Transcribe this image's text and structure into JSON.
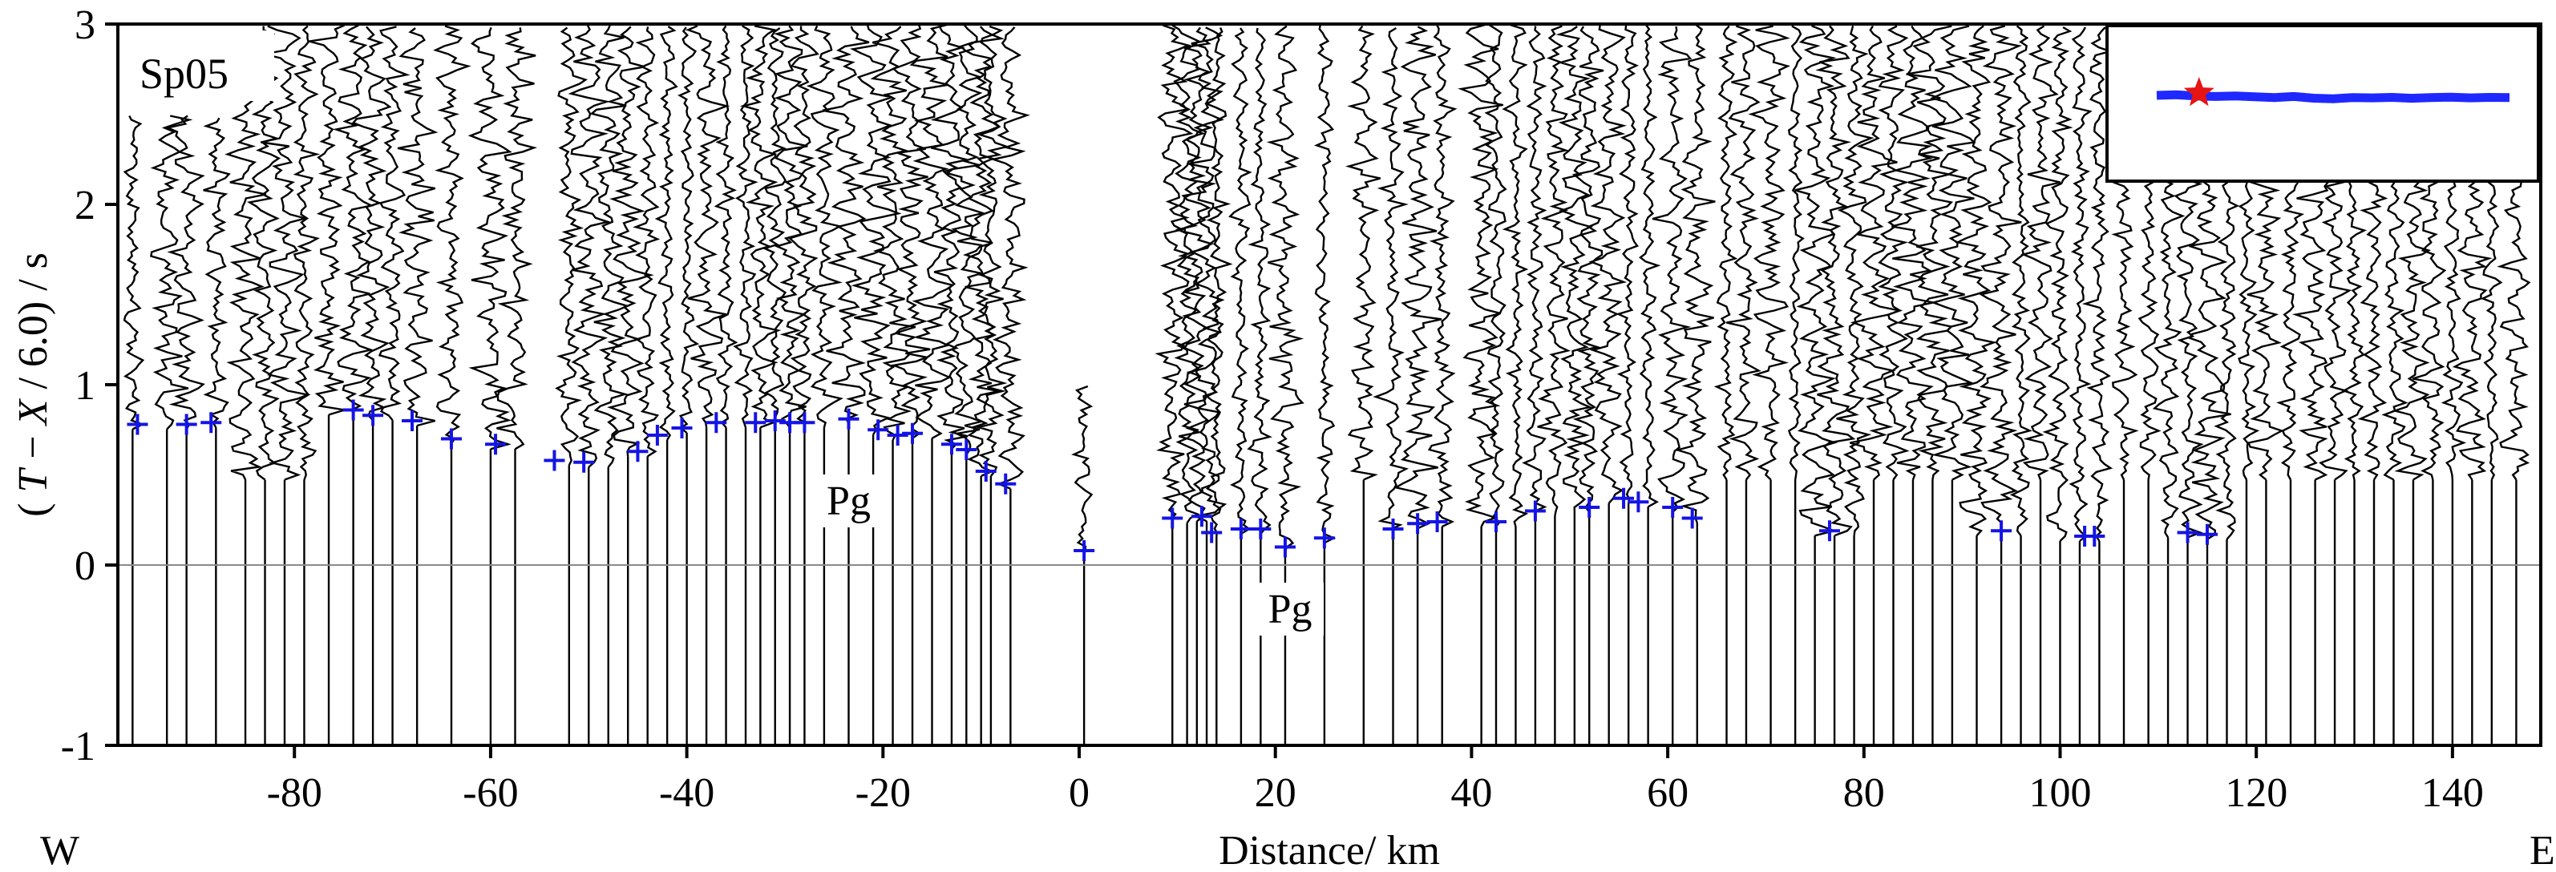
{
  "chart_data": {
    "type": "seismic-record-section",
    "panel_label": "Sp05",
    "xlabel": "Distance/ km",
    "ylabel_parts": [
      "( ",
      "T",
      " − ",
      "X",
      " / 6.0) / s"
    ],
    "xlim": [
      -98,
      149
    ],
    "ylim": [
      -1,
      3
    ],
    "x_ticks": [
      -80,
      -60,
      -40,
      -20,
      0,
      20,
      40,
      60,
      80,
      100,
      120,
      140
    ],
    "y_ticks": [
      -1,
      0,
      1,
      2,
      3
    ],
    "direction_labels": {
      "left": "W",
      "right": "E"
    },
    "annotations": [
      {
        "text": "Pg",
        "x": -23.5,
        "y": 0.28
      },
      {
        "text": "Pg",
        "x": 21.5,
        "y": -0.32
      }
    ],
    "reference_line_y": 0,
    "trace_color": "#000000",
    "pick_color": "#1414e6",
    "traces": [
      {
        "x": -96.5,
        "start": 2.5
      },
      {
        "x": -93,
        "start": 2.5
      },
      {
        "x": -91,
        "start": 2.5
      },
      {
        "x": -88,
        "start": 2.5
      },
      {
        "x": -85,
        "start": 2.9
      },
      {
        "x": -83,
        "start": 3.0
      },
      {
        "x": -81,
        "start": 3.0
      },
      {
        "x": -79,
        "start": 3.0
      },
      {
        "x": -76.5,
        "start": 3.0
      },
      {
        "x": -74,
        "start": 3.0
      },
      {
        "x": -72,
        "start": 3.0
      },
      {
        "x": -70,
        "start": 3.0
      },
      {
        "x": -67.5,
        "start": 3.0
      },
      {
        "x": -64,
        "start": 3.0
      },
      {
        "x": -60,
        "start": 3.0
      },
      {
        "x": -57.5,
        "start": 3.0
      },
      {
        "x": -52,
        "start": 3.0
      },
      {
        "x": -50,
        "start": 3.0
      },
      {
        "x": -48,
        "start": 3.0
      },
      {
        "x": -46,
        "start": 3.0
      },
      {
        "x": -44,
        "start": 3.0
      },
      {
        "x": -42,
        "start": 3.0
      },
      {
        "x": -40,
        "start": 3.0
      },
      {
        "x": -38,
        "start": 3.0
      },
      {
        "x": -36,
        "start": 3.0
      },
      {
        "x": -34,
        "start": 3.0
      },
      {
        "x": -32.5,
        "start": 3.0
      },
      {
        "x": -31,
        "start": 3.0
      },
      {
        "x": -29.5,
        "start": 3.0
      },
      {
        "x": -28,
        "start": 3.0
      },
      {
        "x": -26,
        "start": 3.0
      },
      {
        "x": -23.5,
        "start": 3.0
      },
      {
        "x": -21,
        "start": 3.0
      },
      {
        "x": -19,
        "start": 3.0
      },
      {
        "x": -17,
        "start": 3.0
      },
      {
        "x": -15,
        "start": 3.0
      },
      {
        "x": -13,
        "start": 3.0
      },
      {
        "x": -11.5,
        "start": 3.0
      },
      {
        "x": -10,
        "start": 3.0
      },
      {
        "x": -9,
        "start": 3.0
      },
      {
        "x": -7,
        "start": 3.0
      },
      {
        "x": 0.5,
        "start": 1.0
      },
      {
        "x": 9.5,
        "start": 3.0
      },
      {
        "x": 11,
        "start": 3.0
      },
      {
        "x": 12,
        "start": 3.0
      },
      {
        "x": 13,
        "start": 3.0
      },
      {
        "x": 14,
        "start": 3.0
      },
      {
        "x": 16.5,
        "start": 3.0
      },
      {
        "x": 18.5,
        "start": 3.0
      },
      {
        "x": 21,
        "start": 3.0
      },
      {
        "x": 25,
        "start": 3.0
      },
      {
        "x": 29,
        "start": 3.0
      },
      {
        "x": 32,
        "start": 3.0
      },
      {
        "x": 34.5,
        "start": 3.0
      },
      {
        "x": 37,
        "start": 3.0
      },
      {
        "x": 41,
        "start": 3.0
      },
      {
        "x": 42.5,
        "start": 3.0
      },
      {
        "x": 44.5,
        "start": 3.0
      },
      {
        "x": 46.5,
        "start": 3.0
      },
      {
        "x": 48.5,
        "start": 3.0
      },
      {
        "x": 50.5,
        "start": 3.0
      },
      {
        "x": 52,
        "start": 3.0
      },
      {
        "x": 54,
        "start": 3.0
      },
      {
        "x": 56,
        "start": 3.0
      },
      {
        "x": 58,
        "start": 3.0
      },
      {
        "x": 60.5,
        "start": 3.0
      },
      {
        "x": 63,
        "start": 3.0
      },
      {
        "x": 66,
        "start": 3.0
      },
      {
        "x": 68,
        "start": 3.0
      },
      {
        "x": 70.5,
        "start": 3.0
      },
      {
        "x": 73,
        "start": 3.0
      },
      {
        "x": 75,
        "start": 3.0
      },
      {
        "x": 77,
        "start": 3.0
      },
      {
        "x": 79,
        "start": 3.0
      },
      {
        "x": 81,
        "start": 3.0
      },
      {
        "x": 83,
        "start": 3.0
      },
      {
        "x": 85,
        "start": 3.0
      },
      {
        "x": 87,
        "start": 3.0
      },
      {
        "x": 89,
        "start": 3.0
      },
      {
        "x": 91.5,
        "start": 3.0
      },
      {
        "x": 94,
        "start": 3.0
      },
      {
        "x": 96,
        "start": 3.0
      },
      {
        "x": 98,
        "start": 3.0
      },
      {
        "x": 100,
        "start": 3.0
      },
      {
        "x": 102,
        "start": 3.0
      },
      {
        "x": 104,
        "start": 3.0
      },
      {
        "x": 106.5,
        "start": 3.0
      },
      {
        "x": 109,
        "start": 3.0
      },
      {
        "x": 111,
        "start": 3.0
      },
      {
        "x": 113,
        "start": 2.2
      },
      {
        "x": 115,
        "start": 2.2
      },
      {
        "x": 117,
        "start": 2.2
      },
      {
        "x": 119,
        "start": 2.2
      },
      {
        "x": 121,
        "start": 2.2
      },
      {
        "x": 123.5,
        "start": 2.2
      },
      {
        "x": 126,
        "start": 2.2
      },
      {
        "x": 128,
        "start": 2.2
      },
      {
        "x": 130,
        "start": 2.2
      },
      {
        "x": 132,
        "start": 2.2
      },
      {
        "x": 134,
        "start": 2.2
      },
      {
        "x": 136,
        "start": 2.2
      },
      {
        "x": 138,
        "start": 2.2
      },
      {
        "x": 140,
        "start": 2.2
      },
      {
        "x": 142,
        "start": 2.2
      },
      {
        "x": 144,
        "start": 2.2
      },
      {
        "x": 146.5,
        "start": 2.2
      }
    ],
    "picks": [
      {
        "x": -96,
        "t": 0.78
      },
      {
        "x": -91,
        "t": 0.78
      },
      {
        "x": -88.5,
        "t": 0.79
      },
      {
        "x": -74,
        "t": 0.86
      },
      {
        "x": -72,
        "t": 0.83
      },
      {
        "x": -68,
        "t": 0.8
      },
      {
        "x": -64,
        "t": 0.7
      },
      {
        "x": -59.5,
        "t": 0.67
      },
      {
        "x": -53.5,
        "t": 0.58
      },
      {
        "x": -50.5,
        "t": 0.57
      },
      {
        "x": -45,
        "t": 0.63
      },
      {
        "x": -43,
        "t": 0.72
      },
      {
        "x": -40.5,
        "t": 0.76
      },
      {
        "x": -37,
        "t": 0.79
      },
      {
        "x": -33,
        "t": 0.79
      },
      {
        "x": -31,
        "t": 0.8
      },
      {
        "x": -29.5,
        "t": 0.79
      },
      {
        "x": -28,
        "t": 0.79
      },
      {
        "x": -23.5,
        "t": 0.81
      },
      {
        "x": -20.5,
        "t": 0.75
      },
      {
        "x": -18.5,
        "t": 0.72
      },
      {
        "x": -17,
        "t": 0.73
      },
      {
        "x": -13,
        "t": 0.67
      },
      {
        "x": -11.5,
        "t": 0.64
      },
      {
        "x": -9.5,
        "t": 0.52
      },
      {
        "x": -7.5,
        "t": 0.45
      },
      {
        "x": 0.5,
        "t": 0.08
      },
      {
        "x": 9.5,
        "t": 0.26
      },
      {
        "x": 12.5,
        "t": 0.27
      },
      {
        "x": 13.5,
        "t": 0.18
      },
      {
        "x": 16.5,
        "t": 0.2
      },
      {
        "x": 18.5,
        "t": 0.2
      },
      {
        "x": 21,
        "t": 0.1
      },
      {
        "x": 25,
        "t": 0.15
      },
      {
        "x": 32,
        "t": 0.2
      },
      {
        "x": 34.5,
        "t": 0.23
      },
      {
        "x": 36.5,
        "t": 0.24
      },
      {
        "x": 42.5,
        "t": 0.24
      },
      {
        "x": 46.5,
        "t": 0.3
      },
      {
        "x": 52,
        "t": 0.32
      },
      {
        "x": 55.5,
        "t": 0.37
      },
      {
        "x": 57,
        "t": 0.35
      },
      {
        "x": 60.5,
        "t": 0.32
      },
      {
        "x": 62.5,
        "t": 0.26
      },
      {
        "x": 76.5,
        "t": 0.19
      },
      {
        "x": 94,
        "t": 0.19
      },
      {
        "x": 102.5,
        "t": 0.16
      },
      {
        "x": 103.5,
        "t": 0.16
      },
      {
        "x": 113,
        "t": 0.18
      },
      {
        "x": 115,
        "t": 0.17
      }
    ],
    "inset_map": {
      "line_color": "#1e28ff",
      "marker_color": "#e61414",
      "profile": [
        0.5,
        0.45,
        0.55,
        0.6,
        0.55,
        0.62,
        0.7,
        0.6,
        0.75,
        0.8,
        0.7,
        0.72,
        0.68,
        0.76,
        0.7,
        0.66,
        0.72,
        0.68,
        0.7
      ],
      "shot_position": 0.12
    }
  }
}
